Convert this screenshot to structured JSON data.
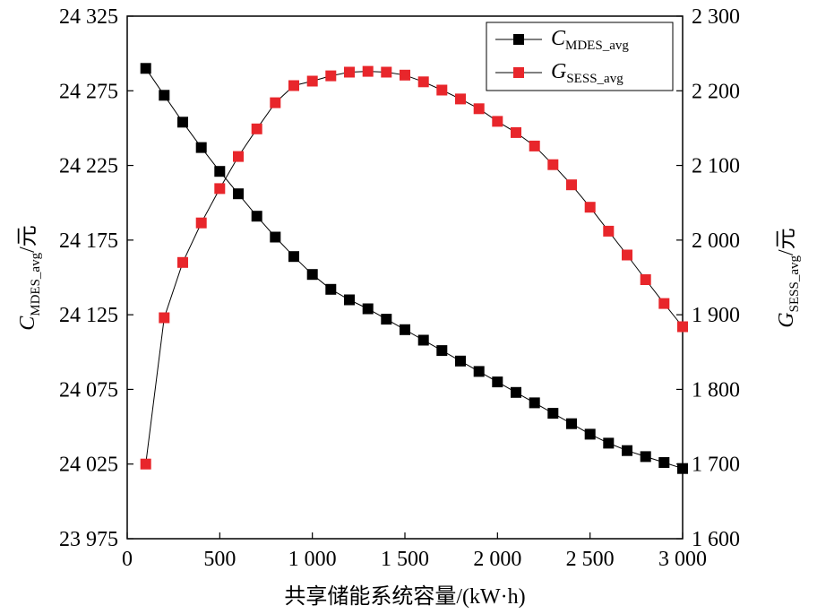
{
  "chart_data": {
    "type": "line",
    "xlabel": "共享储能系统容量/(kW·h)",
    "ylabel_left": {
      "symbol": "C",
      "subscript": "MDES_avg",
      "unit": "/元"
    },
    "ylabel_right": {
      "symbol": "G",
      "subscript": "SESS_avg",
      "unit": "/元"
    },
    "xlim": [
      0,
      3000
    ],
    "ylim_left": [
      23975,
      24325
    ],
    "ylim_right": [
      1600,
      2300
    ],
    "xticks": [
      0,
      500,
      1000,
      1500,
      2000,
      2500,
      3000
    ],
    "xtick_labels": [
      "0",
      "500",
      "1 000",
      "1 500",
      "2 000",
      "2 500",
      "3 000"
    ],
    "yticks_left": [
      23975,
      24025,
      24075,
      24125,
      24175,
      24225,
      24275,
      24325
    ],
    "ytick_labels_left": [
      "23 975",
      "24 025",
      "24 075",
      "24 125",
      "24 175",
      "24 225",
      "24 275",
      "24 325"
    ],
    "yticks_right": [
      1600,
      1700,
      1800,
      1900,
      2000,
      2100,
      2200,
      2300
    ],
    "ytick_labels_right": [
      "1 600",
      "1 700",
      "1 800",
      "1 900",
      "2 000",
      "2 100",
      "2 200",
      "2 300"
    ],
    "x": [
      100,
      200,
      300,
      400,
      500,
      600,
      700,
      800,
      900,
      1000,
      1100,
      1200,
      1300,
      1400,
      1500,
      1600,
      1700,
      1800,
      1900,
      2000,
      2100,
      2200,
      2300,
      2400,
      2500,
      2600,
      2700,
      2800,
      2900,
      3000
    ],
    "legend_position": "top-right",
    "grid": false,
    "series": [
      {
        "name_symbol": "C",
        "name_subscript": "MDES_avg",
        "axis": "left",
        "color": "#000000",
        "marker": "square",
        "values": [
          24290,
          24272,
          24254,
          24237,
          24221,
          24206,
          24191,
          24177,
          24164,
          24152,
          24142,
          24135,
          24129,
          24122,
          24115,
          24108,
          24101,
          24094,
          24087,
          24080,
          24073,
          24066,
          24059,
          24052,
          24045,
          24039,
          24034,
          24030,
          24026,
          24022
        ]
      },
      {
        "name_symbol": "G",
        "name_subscript": "SESS_avg",
        "axis": "right",
        "color": "#e8262b",
        "marker": "square",
        "values": [
          1700,
          1896,
          1970,
          2023,
          2069,
          2112,
          2149,
          2184,
          2207,
          2213,
          2220,
          2225,
          2226,
          2225,
          2221,
          2212,
          2201,
          2189,
          2176,
          2159,
          2144,
          2126,
          2101,
          2074,
          2044,
          2012,
          1980,
          1947,
          1915,
          1884
        ]
      }
    ]
  }
}
